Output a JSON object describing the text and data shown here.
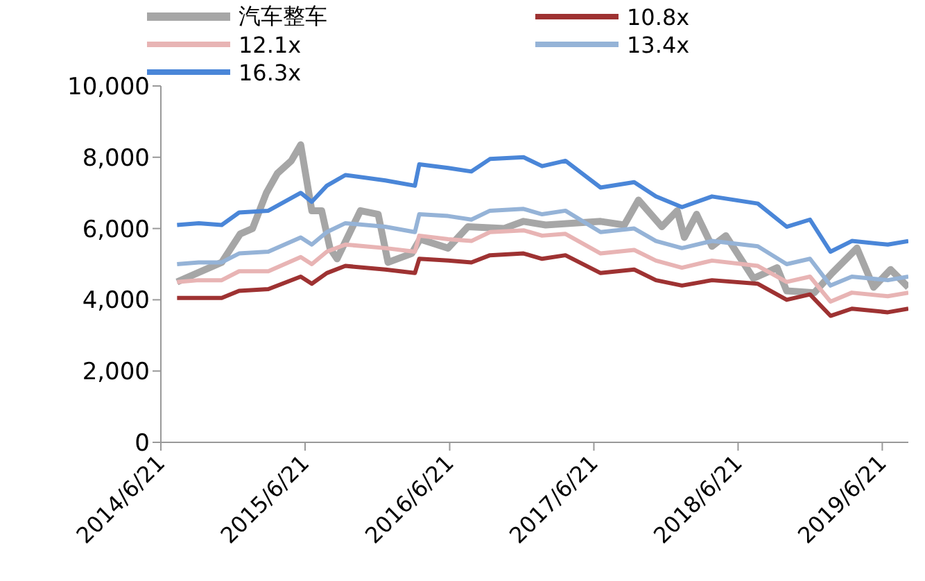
{
  "chart_data": {
    "type": "line",
    "legend": "top",
    "grid": false,
    "x": [
      "2014-08-01",
      "2014-09-25",
      "2014-11-22",
      "2015-01-05",
      "2015-03-20",
      "2015-06-10",
      "2015-07-08",
      "2015-08-15",
      "2015-10-01",
      "2016-01-10",
      "2016-03-25",
      "2016-04-05",
      "2016-06-17",
      "2016-08-15",
      "2016-10-01",
      "2016-12-25",
      "2017-02-10",
      "2017-04-10",
      "2017-07-08",
      "2017-10-01",
      "2017-11-25",
      "2018-01-30",
      "2018-04-16",
      "2018-08-10",
      "2018-10-22",
      "2018-12-20",
      "2019-02-10",
      "2019-04-05",
      "2019-07-05",
      "2019-08-26"
    ],
    "xlim": [
      "2014-06-21",
      "2019-08-26"
    ],
    "xticks": [
      {
        "value": "2014-06-21",
        "label": "2014/6/21"
      },
      {
        "value": "2015-06-21",
        "label": "2015/6/21"
      },
      {
        "value": "2016-06-21",
        "label": "2016/6/21"
      },
      {
        "value": "2017-06-21",
        "label": "2017/6/21"
      },
      {
        "value": "2018-06-21",
        "label": "2018/6/21"
      },
      {
        "value": "2019-06-21",
        "label": "2019/6/21"
      }
    ],
    "ylim": [
      0,
      10000
    ],
    "yticks": [
      0,
      {
        "value": 2000,
        "label": "2,000"
      },
      {
        "value": 4000,
        "label": "4,000"
      },
      {
        "value": 6000,
        "label": "6,000"
      },
      {
        "value": 8000,
        "label": "8,000"
      },
      {
        "value": 10000,
        "label": "10,000"
      }
    ],
    "series": [
      {
        "name": "汽车整车",
        "color": "#a6a6a6",
        "x": [
          "2014-08-01",
          "2014-11-22",
          "2015-01-08",
          "2015-02-08",
          "2015-03-15",
          "2015-04-12",
          "2015-05-17",
          "2015-06-10",
          "2015-07-08",
          "2015-08-02",
          "2015-08-23",
          "2015-09-10",
          "2015-11-08",
          "2015-12-23",
          "2016-01-17",
          "2016-03-17",
          "2016-04-07",
          "2016-06-17",
          "2016-08-06",
          "2016-11-05",
          "2016-12-25",
          "2017-02-19",
          "2017-07-08",
          "2017-09-06",
          "2017-10-12",
          "2017-12-10",
          "2018-01-18",
          "2018-02-05",
          "2018-03-08",
          "2018-04-16",
          "2018-05-21",
          "2018-07-30",
          "2018-09-28",
          "2018-10-22",
          "2018-12-31",
          "2019-02-14",
          "2019-04-18",
          "2019-05-30",
          "2019-07-12",
          "2019-08-26"
        ],
        "values": [
          4500,
          5050,
          5850,
          6000,
          7000,
          7550,
          7900,
          8350,
          6500,
          6500,
          5450,
          5150,
          6500,
          6400,
          5050,
          5300,
          5700,
          5450,
          6050,
          6000,
          6200,
          6100,
          6200,
          6100,
          6800,
          6050,
          6500,
          5750,
          6400,
          5500,
          5800,
          4600,
          4900,
          4250,
          4200,
          4750,
          5450,
          4350,
          4850,
          4350
        ]
      },
      {
        "name": "10.8x",
        "color": "#9e3232",
        "values": [
          4050,
          4050,
          4050,
          4250,
          4300,
          4650,
          4450,
          4750,
          4950,
          4850,
          4750,
          5150,
          5100,
          5050,
          5250,
          5300,
          5150,
          5250,
          4750,
          4850,
          4550,
          4400,
          4550,
          4450,
          4000,
          4150,
          3550,
          3750,
          3650,
          3750
        ]
      },
      {
        "name": "12.1x",
        "color": "#e8b4b4",
        "values": [
          4500,
          4550,
          4550,
          4800,
          4800,
          5200,
          5000,
          5350,
          5550,
          5450,
          5350,
          5800,
          5700,
          5650,
          5900,
          5950,
          5800,
          5850,
          5300,
          5400,
          5100,
          4900,
          5100,
          4950,
          4500,
          4650,
          3950,
          4200,
          4100,
          4200
        ]
      },
      {
        "name": "13.4x",
        "color": "#95b3d7",
        "values": [
          5000,
          5050,
          5050,
          5300,
          5350,
          5750,
          5550,
          5900,
          6150,
          6050,
          5900,
          6400,
          6350,
          6250,
          6500,
          6550,
          6400,
          6500,
          5900,
          6000,
          5650,
          5450,
          5650,
          5500,
          5000,
          5150,
          4400,
          4650,
          4550,
          4650
        ]
      },
      {
        "name": "16.3x",
        "color": "#4a86d8",
        "values": [
          6100,
          6150,
          6100,
          6450,
          6500,
          7000,
          6750,
          7200,
          7500,
          7350,
          7200,
          7800,
          7700,
          7600,
          7950,
          8000,
          7750,
          7900,
          7150,
          7300,
          6900,
          6600,
          6900,
          6700,
          6050,
          6250,
          5350,
          5650,
          5550,
          5650
        ]
      }
    ]
  }
}
